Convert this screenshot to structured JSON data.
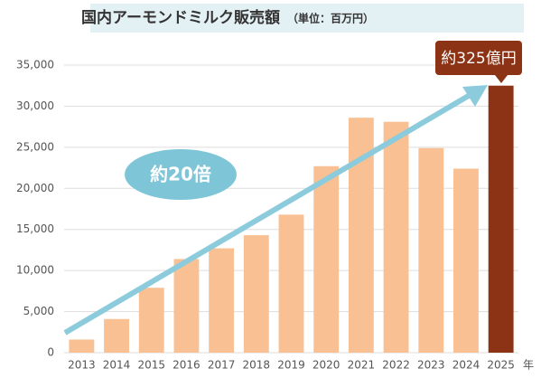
{
  "chart_data": {
    "type": "bar",
    "title": "国内アーモンドミルク販売額",
    "subtitle": "（単位：百万円）",
    "x_label": "年",
    "categories": [
      "2013",
      "2014",
      "2015",
      "2016",
      "2017",
      "2018",
      "2019",
      "2020",
      "2021",
      "2022",
      "2023",
      "2024",
      "2025"
    ],
    "values": [
      1600,
      4100,
      7900,
      11400,
      12700,
      14300,
      16800,
      22700,
      28600,
      28100,
      24900,
      22400,
      32500
    ],
    "colors": [
      "#f9c193",
      "#f9c193",
      "#f9c193",
      "#f9c193",
      "#f9c193",
      "#f9c193",
      "#f9c193",
      "#f9c193",
      "#f9c193",
      "#f9c193",
      "#f9c193",
      "#f9c193",
      "#8b3314"
    ],
    "ylim": [
      0,
      35000
    ],
    "yticks": [
      0,
      {
        "value": 5000,
        "label": "5,000"
      },
      {
        "value": 10000,
        "label": "10,000"
      },
      {
        "value": 15000,
        "label": "15,000"
      },
      {
        "value": 20000,
        "label": "20,000"
      },
      {
        "value": 25000,
        "label": "25,000"
      },
      {
        "value": 30000,
        "label": "30,000"
      },
      {
        "value": 35000,
        "label": "35,000"
      }
    ],
    "grid": true,
    "annotations": [
      "約20倍",
      "約325億円"
    ]
  }
}
